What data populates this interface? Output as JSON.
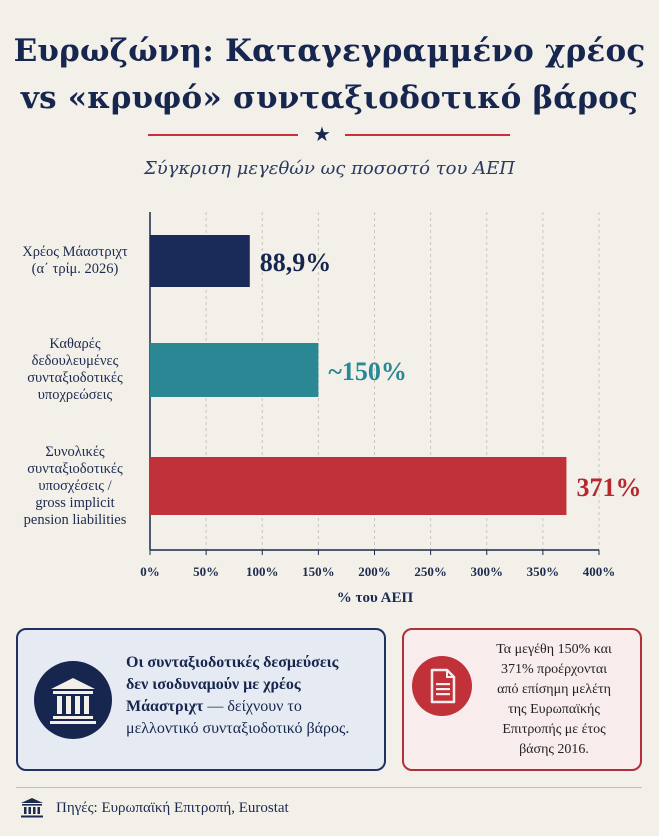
{
  "title": {
    "line1": "Ευρωζώνη: Καταγεγραμμένο χρέος",
    "line2": "vs «κρυφό» συνταξιοδοτικό βάρος"
  },
  "subtitle": "Σύγκριση μεγεθών ως ποσοστό του ΑΕΠ",
  "chart_data": {
    "type": "bar",
    "orientation": "horizontal",
    "categories": [
      "Χρέος Μάαστριχτ (α΄ τρίμ. 2026)",
      "Καθαρές δεδουλευμένες συνταξιοδοτικές υποχρεώσεις",
      "Συνολικές συνταξιοδοτικές υποσχέσεις / gross implicit pension liabilities"
    ],
    "category_lines": [
      [
        "Χρέος Μάαστριχτ",
        "(α΄ τρίμ. 2026)"
      ],
      [
        "Καθαρές",
        "δεδουλευμένες",
        "συνταξιοδοτικές",
        "υποχρεώσεις"
      ],
      [
        "Συνολικές",
        "συνταξιοδοτικές",
        "υποσχέσεις /",
        "gross implicit",
        "pension liabilities"
      ]
    ],
    "values": [
      88.9,
      150,
      371
    ],
    "value_labels": [
      "88,9%",
      "~150%",
      "371%"
    ],
    "colors": [
      "#1a2b5a",
      "#2a8895",
      "#c1313a"
    ],
    "xlim": [
      0,
      400
    ],
    "xticks": [
      0,
      50,
      100,
      150,
      200,
      250,
      300,
      350,
      400
    ],
    "xtick_labels": [
      "0%",
      "50%",
      "100%",
      "150%",
      "200%",
      "250%",
      "300%",
      "350%",
      "400%"
    ],
    "xlabel": "% του ΑΕΠ",
    "grid": "vertical dashed"
  },
  "info_left": {
    "icon": "institution-icon",
    "lines": [
      {
        "text": "Οι συνταξιοδοτικές δεσμεύσεις",
        "bold": true
      },
      {
        "text": "δεν ισοδυναμούν με χρέος",
        "bold": true
      },
      {
        "bold_part": "Μάαστριχτ",
        "rest": " — δείχνουν το"
      },
      {
        "text": "μελλοντικό συνταξιοδοτικό βάρος.",
        "bold": false
      }
    ]
  },
  "info_right": {
    "icon": "document-icon",
    "lines": [
      "Τα μεγέθη 150% και",
      "371% προέρχονται",
      "από επίσημη μελέτη",
      "της Ευρωπαϊκής",
      "Επιτροπής με έτος",
      "βάσης 2016."
    ]
  },
  "footer": {
    "icon": "institution-icon",
    "text": "Πηγές: Ευρωπαϊκή Επιτροπή, Eurostat"
  }
}
